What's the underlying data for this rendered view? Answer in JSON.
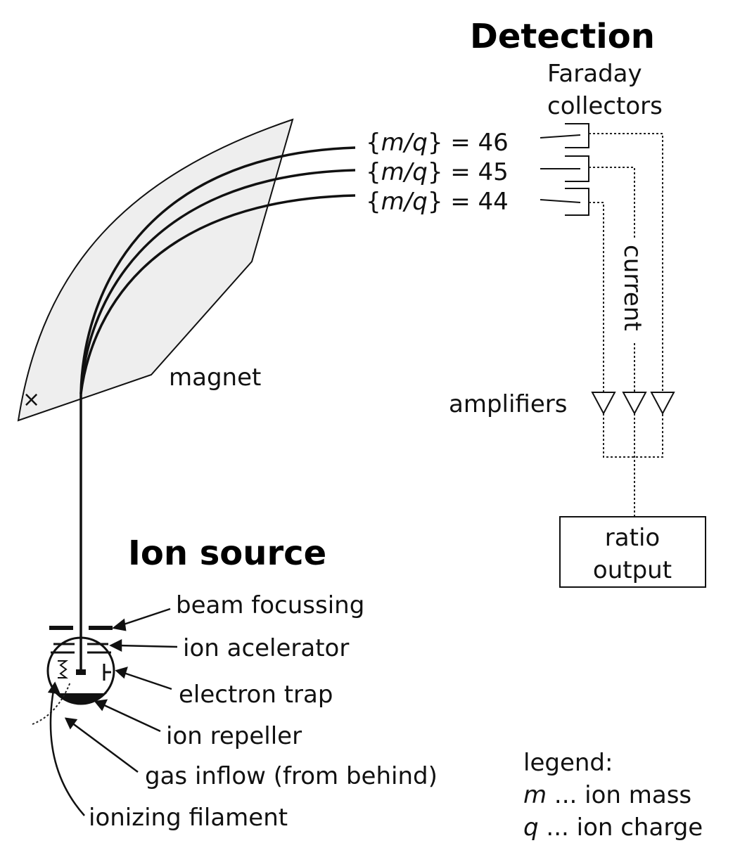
{
  "title_detection": "Detection",
  "faraday_line1": "Faraday",
  "faraday_line2": "collectors",
  "beams": [
    {
      "prefix": "{",
      "var": "m/q",
      "suffix": "} = 46"
    },
    {
      "prefix": "{",
      "var": "m/q",
      "suffix": "} = 45"
    },
    {
      "prefix": "{",
      "var": "m/q",
      "suffix": "} = 44"
    }
  ],
  "current_label": "current",
  "amplifiers_label": "amplifiers",
  "ratio_line1": "ratio",
  "ratio_line2": "output",
  "magnet_label": "magnet",
  "magnet_mark": "×",
  "title_ion_source": "Ion source",
  "source_labels": {
    "beam_focussing": "beam focussing",
    "ion_accelerator": "ion acelerator",
    "electron_trap": "electron trap",
    "ion_repeller": "ion repeller",
    "gas_inflow": "gas inflow (from behind)",
    "ionizing_filament": "ionizing filament"
  },
  "legend": {
    "title": "legend:",
    "m_symbol": "m",
    "m_text": " ... ion mass",
    "q_symbol": "q",
    "q_text": " ... ion charge"
  },
  "colors": {
    "magnet_fill": "#eeeeee",
    "line": "#111111"
  }
}
